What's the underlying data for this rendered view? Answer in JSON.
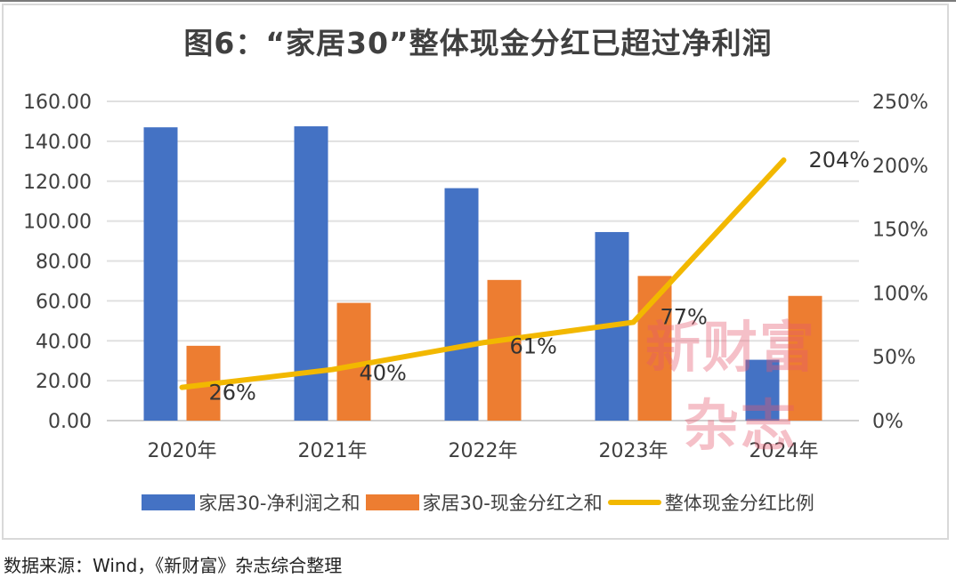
{
  "title": "图6：“家居30”整体现金分红已超过净利润",
  "source": "数据来源：Wind，《新财富》杂志综合整理",
  "watermark": {
    "line1": "新财富",
    "line2": "杂志"
  },
  "colors": {
    "net_profit": "#4472C4",
    "dividend": "#ED7D31",
    "ratio": "#F2B800",
    "grid": "#e0e0e0",
    "text": "#404040"
  },
  "legend": [
    {
      "label": "家居30-净利润之和",
      "type": "bar",
      "color": "#4472C4"
    },
    {
      "label": "家居30-现金分红之和",
      "type": "bar",
      "color": "#ED7D31"
    },
    {
      "label": "整体现金分红比例",
      "type": "line",
      "color": "#F2B800"
    }
  ],
  "chart_data": {
    "type": "bar",
    "title": "图6：“家居30”整体现金分红已超过净利润",
    "categories": [
      "2020年",
      "2021年",
      "2022年",
      "2023年",
      "2024年"
    ],
    "series": [
      {
        "name": "家居30-净利润之和",
        "type": "bar",
        "axis": "left",
        "values": [
          147.0,
          147.5,
          116.5,
          94.5,
          30.5
        ]
      },
      {
        "name": "家居30-现金分红之和",
        "type": "bar",
        "axis": "left",
        "values": [
          37.5,
          59.0,
          70.5,
          72.5,
          62.5
        ]
      },
      {
        "name": "整体现金分红比例",
        "type": "line",
        "axis": "right",
        "values": [
          26,
          40,
          61,
          77,
          204
        ],
        "data_labels": [
          "26%",
          "40%",
          "61%",
          "77%",
          "204%"
        ]
      }
    ],
    "left_axis": {
      "ylim": [
        0,
        160
      ],
      "ticks": [
        "0.00",
        "20.00",
        "40.00",
        "60.00",
        "80.00",
        "100.00",
        "120.00",
        "140.00",
        "160.00"
      ]
    },
    "right_axis": {
      "ylim": [
        0,
        250
      ],
      "ticks": [
        "0%",
        "50%",
        "100%",
        "150%",
        "200%",
        "250%"
      ]
    },
    "xlabel": "",
    "ylabel": "",
    "grid": true,
    "legend_position": "bottom"
  }
}
